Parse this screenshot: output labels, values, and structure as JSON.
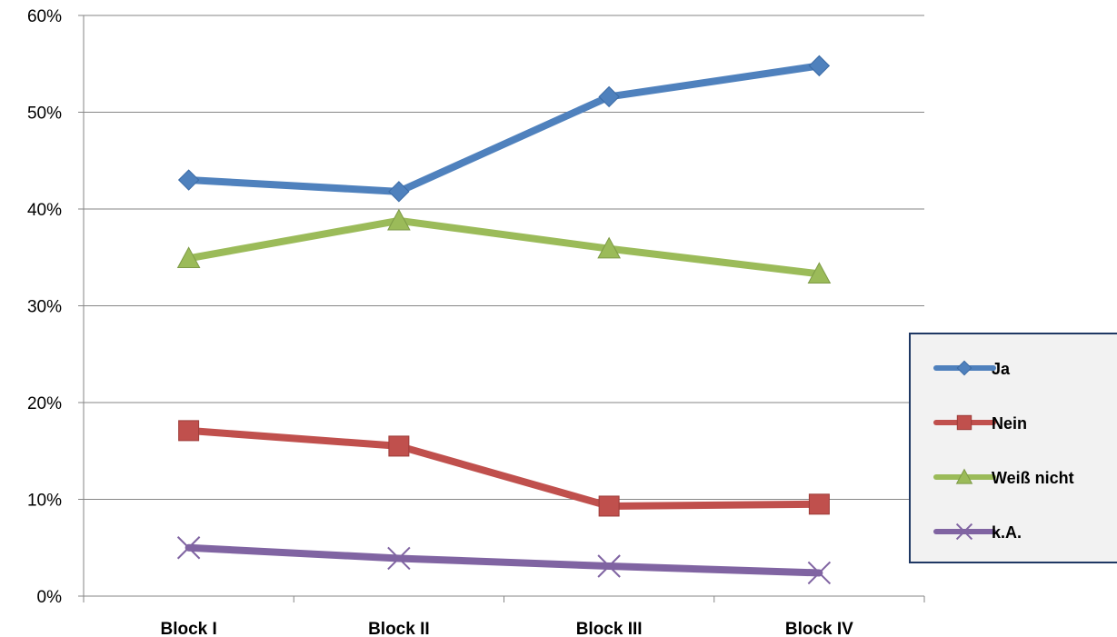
{
  "chart_data": {
    "type": "line",
    "categories": [
      "Block I",
      "Block II",
      "Block III",
      "Block IV"
    ],
    "ylim": [
      0,
      60
    ],
    "yticks": [
      0,
      10,
      20,
      30,
      40,
      50,
      60
    ],
    "ytick_labels": [
      "0%",
      "10%",
      "20%",
      "30%",
      "40%",
      "50%",
      "60%"
    ],
    "grid": true,
    "legend_position": "right",
    "series": [
      {
        "name": "Ja",
        "values": [
          43.0,
          41.8,
          51.6,
          54.8
        ],
        "color": "#4F81BD",
        "marker": "diamond"
      },
      {
        "name": "Nein",
        "values": [
          17.1,
          15.5,
          9.3,
          9.5
        ],
        "color": "#C0504D",
        "marker": "square"
      },
      {
        "name": "Weiß nicht",
        "values": [
          34.9,
          38.8,
          35.9,
          33.3
        ],
        "color": "#9BBB59",
        "marker": "triangle"
      },
      {
        "name": "k.A.",
        "values": [
          5.0,
          3.9,
          3.1,
          2.4
        ],
        "color": "#8064A2",
        "marker": "x"
      }
    ]
  }
}
